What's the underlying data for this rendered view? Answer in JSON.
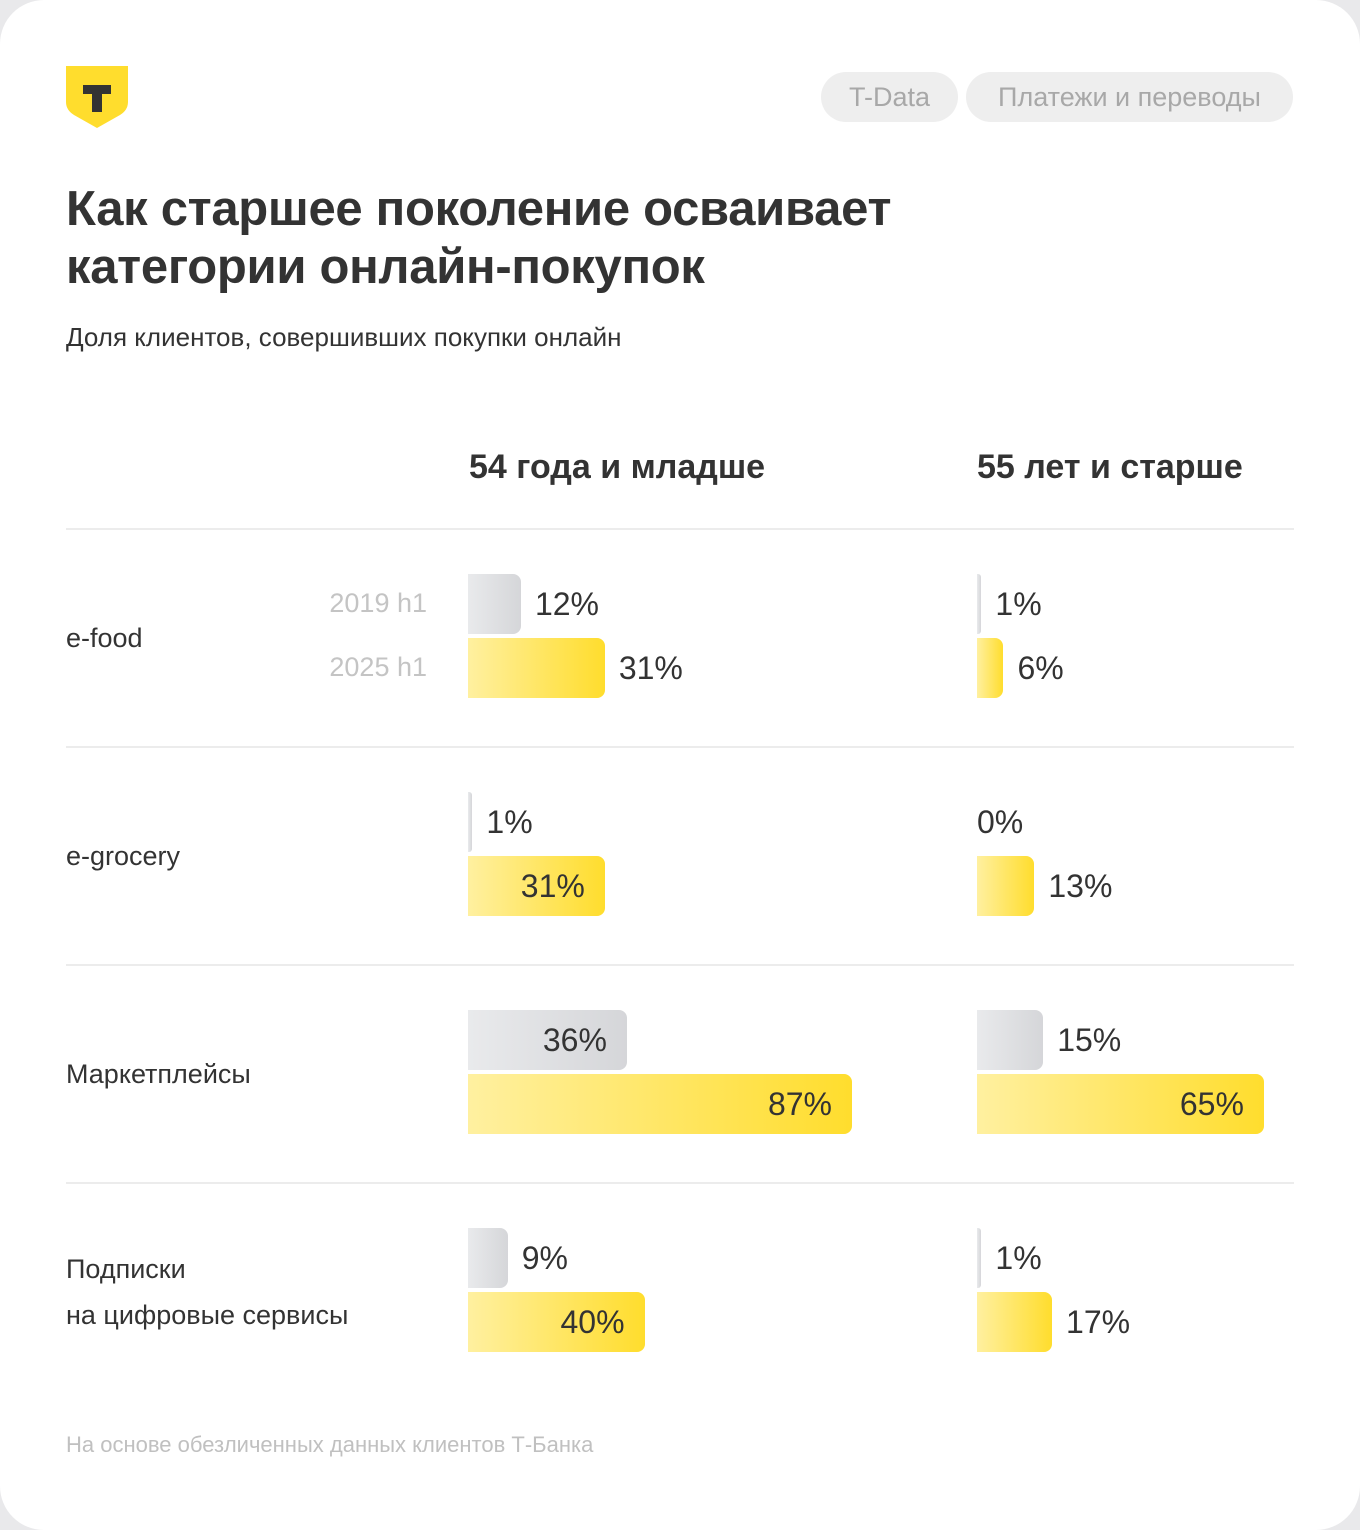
{
  "header": {
    "logo_letter": "Т",
    "tags": [
      "T-Data",
      "Платежи и переводы"
    ]
  },
  "colors": {
    "brand_yellow": "#ffdd2d",
    "grey_bar": "#d5d6d9",
    "text": "#333333"
  },
  "chart_data": {
    "type": "bar",
    "orientation": "horizontal",
    "title": "Как старшее поколение осваивает категории онлайн-покупок",
    "subtitle": "Доля клиентов, совершивших покупки онлайн",
    "panels": [
      "54 года и младше",
      "55 лет и старше"
    ],
    "categories": [
      "e-food",
      "e-grocery",
      "Маркетплейсы",
      "Подписки\nна цифровые сервисы"
    ],
    "category_lines": [
      [
        "e-food"
      ],
      [
        "e-grocery"
      ],
      [
        "Маркетплейсы"
      ],
      [
        "Подписки",
        "на цифровые сервисы"
      ]
    ],
    "series": [
      {
        "name": "2019 h1",
        "color": "grey",
        "values": [
          [
            12,
            1
          ],
          [
            1,
            0
          ],
          [
            36,
            15
          ],
          [
            9,
            1
          ]
        ],
        "labels": [
          [
            "12%",
            "1%"
          ],
          [
            "1%",
            "0%"
          ],
          [
            "36%",
            "15%"
          ],
          [
            "9%",
            "1%"
          ]
        ],
        "label_position": [
          [
            "outside",
            "outside"
          ],
          [
            "outside",
            "outside"
          ],
          [
            "inside",
            "outside"
          ],
          [
            "outside",
            "outside"
          ]
        ]
      },
      {
        "name": "2025 h1",
        "color": "yellow",
        "values": [
          [
            31,
            6
          ],
          [
            31,
            13
          ],
          [
            87,
            65
          ],
          [
            40,
            17
          ]
        ],
        "labels": [
          [
            "31%",
            "6%"
          ],
          [
            "31%",
            "13%"
          ],
          [
            "87%",
            "65%"
          ],
          [
            "40%",
            "17%"
          ]
        ],
        "label_position": [
          [
            "outside",
            "outside"
          ],
          [
            "inside",
            "outside"
          ],
          [
            "inside",
            "inside"
          ],
          [
            "inside",
            "outside"
          ]
        ]
      }
    ],
    "unit": "%",
    "xlim": [
      0,
      100
    ]
  },
  "footer": "На основе обезличенных данных клиентов Т-Банка"
}
